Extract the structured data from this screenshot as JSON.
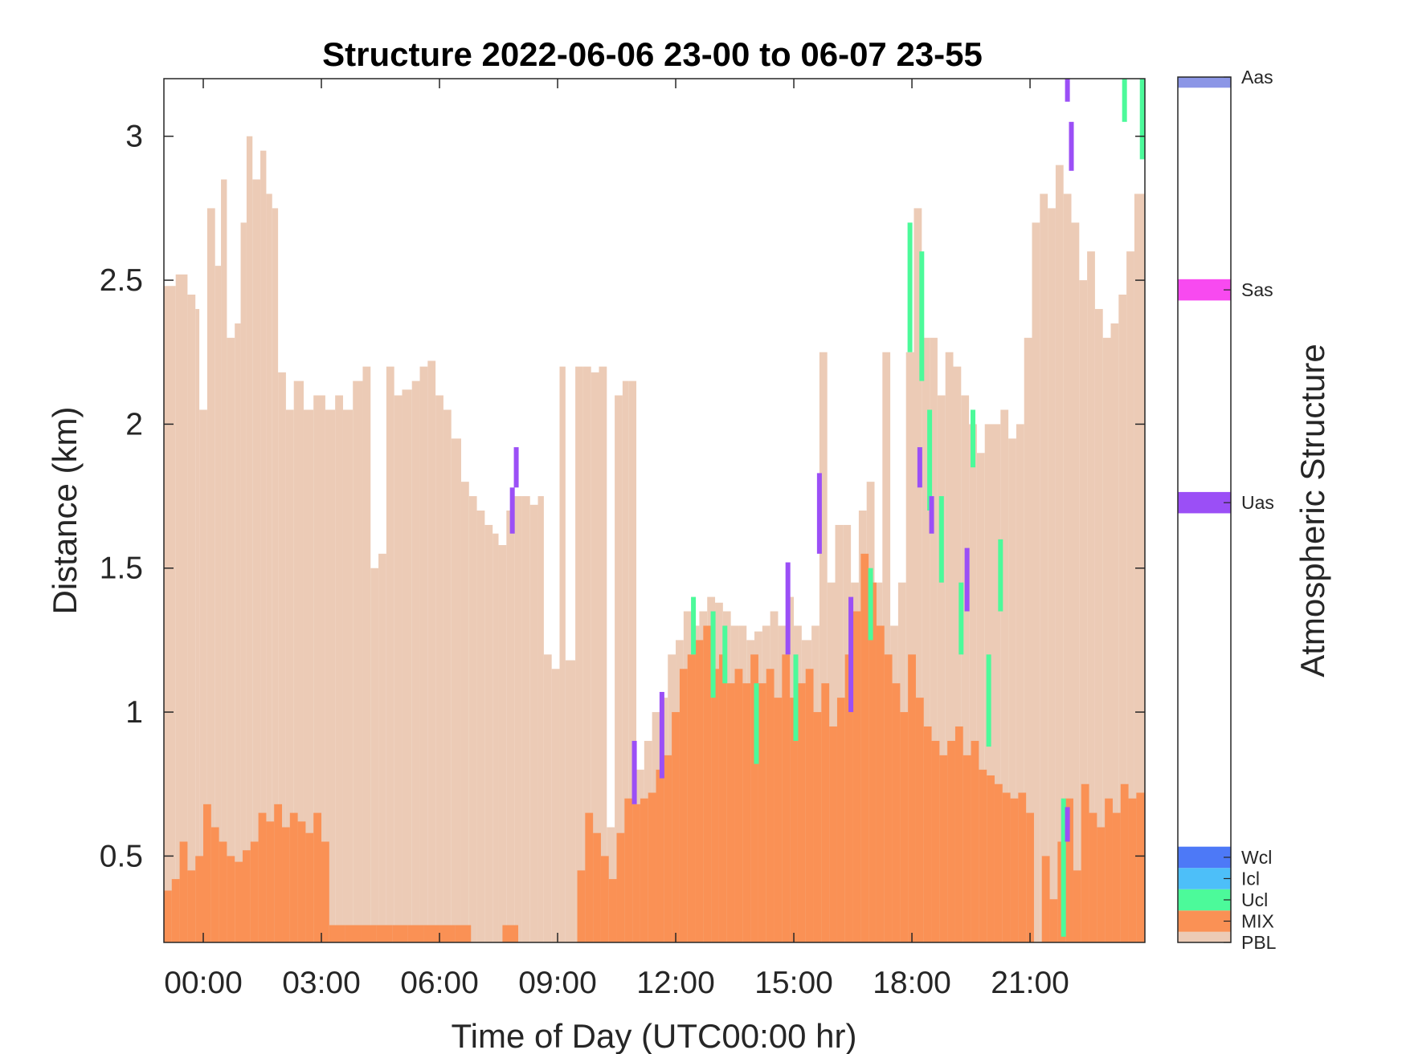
{
  "chart_data": {
    "type": "heatmap",
    "title": "Structure 2022-06-06 23-00 to 06-07 23-55",
    "xlabel": "Time of Day (UTC00:00 hr)",
    "ylabel": "Distance (km)",
    "colorbar_label": "Atmospheric Structure",
    "x_range_hours": [
      -1,
      23.917
    ],
    "ylim": [
      0.2,
      3.2
    ],
    "x_ticks": [
      {
        "value": 0,
        "label": "00:00"
      },
      {
        "value": 3,
        "label": "03:00"
      },
      {
        "value": 6,
        "label": "06:00"
      },
      {
        "value": 9,
        "label": "09:00"
      },
      {
        "value": 12,
        "label": "12:00"
      },
      {
        "value": 15,
        "label": "15:00"
      },
      {
        "value": 18,
        "label": "18:00"
      },
      {
        "value": 21,
        "label": "21:00"
      }
    ],
    "y_ticks": [
      {
        "value": 0.5,
        "label": "0.5"
      },
      {
        "value": 1,
        "label": "1"
      },
      {
        "value": 1.5,
        "label": "1.5"
      },
      {
        "value": 2,
        "label": "2"
      },
      {
        "value": 2.5,
        "label": "2.5"
      },
      {
        "value": 3,
        "label": "3"
      }
    ],
    "classes": [
      {
        "key": "PBL",
        "label": "PBL",
        "color": "#ECCBB6",
        "cb_pos": 0.2
      },
      {
        "key": "MIX",
        "label": "MIX",
        "color": "#FA9155",
        "cb_pos": 0.275
      },
      {
        "key": "Ucl",
        "label": "Ucl",
        "color": "#4CFA9A",
        "cb_pos": 0.35
      },
      {
        "key": "Icl",
        "label": "Icl",
        "color": "#4DBFF9",
        "cb_pos": 0.425
      },
      {
        "key": "Wcl",
        "label": "Wcl",
        "color": "#4D79F7",
        "cb_pos": 0.5
      },
      {
        "key": "Uas",
        "label": "Uas",
        "color": "#9B4FF6",
        "cb_pos": 1.75
      },
      {
        "key": "Sas",
        "label": "Sas",
        "color": "#F84AF0",
        "cb_pos": 2.5
      },
      {
        "key": "Aas",
        "label": "Aas",
        "color": "#8C96E6",
        "cb_pos": 3.25
      }
    ],
    "pbl_top_km": [
      [
        -1.0,
        2.48
      ],
      [
        -0.7,
        2.52
      ],
      [
        -0.4,
        2.45
      ],
      [
        -0.2,
        2.4
      ],
      [
        -0.1,
        2.05
      ],
      [
        0.1,
        2.75
      ],
      [
        0.3,
        2.55
      ],
      [
        0.45,
        2.85
      ],
      [
        0.6,
        2.3
      ],
      [
        0.8,
        2.35
      ],
      [
        0.95,
        2.7
      ],
      [
        1.1,
        3.0
      ],
      [
        1.25,
        2.85
      ],
      [
        1.45,
        2.95
      ],
      [
        1.6,
        2.8
      ],
      [
        1.75,
        2.75
      ],
      [
        1.9,
        2.18
      ],
      [
        2.1,
        2.05
      ],
      [
        2.3,
        2.15
      ],
      [
        2.55,
        2.05
      ],
      [
        2.8,
        2.1
      ],
      [
        3.1,
        2.05
      ],
      [
        3.35,
        2.1
      ],
      [
        3.55,
        2.05
      ],
      [
        3.8,
        2.15
      ],
      [
        4.05,
        2.2
      ],
      [
        4.25,
        1.5
      ],
      [
        4.45,
        1.55
      ],
      [
        4.65,
        2.2
      ],
      [
        4.85,
        2.1
      ],
      [
        5.05,
        2.12
      ],
      [
        5.3,
        2.15
      ],
      [
        5.5,
        2.2
      ],
      [
        5.7,
        2.22
      ],
      [
        5.9,
        2.1
      ],
      [
        6.1,
        2.05
      ],
      [
        6.3,
        1.95
      ],
      [
        6.55,
        1.8
      ],
      [
        6.75,
        1.75
      ],
      [
        6.95,
        1.7
      ],
      [
        7.15,
        1.65
      ],
      [
        7.35,
        1.62
      ],
      [
        7.5,
        1.58
      ],
      [
        7.7,
        1.7
      ],
      [
        7.9,
        1.75
      ],
      [
        8.1,
        1.75
      ],
      [
        8.3,
        1.72
      ],
      [
        8.5,
        1.75
      ],
      [
        8.65,
        1.2
      ],
      [
        8.85,
        1.15
      ],
      [
        9.05,
        2.2
      ],
      [
        9.2,
        1.18
      ],
      [
        9.45,
        2.2
      ],
      [
        9.65,
        2.2
      ],
      [
        9.85,
        2.18
      ],
      [
        10.05,
        2.2
      ],
      [
        10.25,
        0.6
      ],
      [
        10.45,
        2.1
      ],
      [
        10.65,
        2.15
      ],
      [
        10.8,
        2.15
      ],
      [
        11.0,
        0.8
      ],
      [
        11.2,
        0.9
      ],
      [
        11.4,
        1.0
      ],
      [
        11.6,
        1.05
      ],
      [
        11.8,
        1.2
      ],
      [
        12.0,
        1.25
      ],
      [
        12.2,
        1.35
      ],
      [
        12.4,
        1.3
      ],
      [
        12.6,
        1.35
      ],
      [
        12.8,
        1.4
      ],
      [
        13.0,
        1.38
      ],
      [
        13.2,
        1.35
      ],
      [
        13.4,
        1.3
      ],
      [
        13.6,
        1.3
      ],
      [
        13.8,
        1.25
      ],
      [
        14.0,
        1.28
      ],
      [
        14.2,
        1.3
      ],
      [
        14.4,
        1.35
      ],
      [
        14.6,
        1.3
      ],
      [
        14.8,
        1.4
      ],
      [
        15.0,
        1.3
      ],
      [
        15.2,
        1.25
      ],
      [
        15.45,
        1.3
      ],
      [
        15.65,
        2.25
      ],
      [
        15.85,
        1.45
      ],
      [
        16.05,
        1.65
      ],
      [
        16.25,
        1.65
      ],
      [
        16.45,
        1.45
      ],
      [
        16.65,
        1.7
      ],
      [
        16.85,
        1.8
      ],
      [
        17.05,
        1.45
      ],
      [
        17.25,
        2.25
      ],
      [
        17.45,
        1.3
      ],
      [
        17.65,
        1.45
      ],
      [
        17.85,
        2.25
      ],
      [
        18.05,
        2.75
      ],
      [
        18.25,
        2.3
      ],
      [
        18.45,
        2.3
      ],
      [
        18.65,
        2.1
      ],
      [
        18.85,
        2.25
      ],
      [
        19.05,
        2.2
      ],
      [
        19.25,
        2.1
      ],
      [
        19.45,
        2.0
      ],
      [
        19.65,
        1.9
      ],
      [
        19.85,
        2.0
      ],
      [
        20.05,
        2.0
      ],
      [
        20.25,
        2.05
      ],
      [
        20.45,
        1.95
      ],
      [
        20.65,
        2.0
      ],
      [
        20.85,
        2.3
      ],
      [
        21.05,
        2.7
      ],
      [
        21.25,
        2.8
      ],
      [
        21.45,
        2.75
      ],
      [
        21.65,
        2.9
      ],
      [
        21.85,
        2.8
      ],
      [
        22.05,
        2.7
      ],
      [
        22.25,
        2.5
      ],
      [
        22.45,
        2.6
      ],
      [
        22.65,
        2.4
      ],
      [
        22.85,
        2.3
      ],
      [
        23.05,
        2.35
      ],
      [
        23.25,
        2.45
      ],
      [
        23.45,
        2.6
      ],
      [
        23.65,
        2.8
      ],
      [
        23.917,
        2.9
      ]
    ],
    "mix_top_km": [
      [
        -1.0,
        0.38
      ],
      [
        -0.8,
        0.42
      ],
      [
        -0.6,
        0.55
      ],
      [
        -0.4,
        0.45
      ],
      [
        -0.2,
        0.5
      ],
      [
        0.0,
        0.68
      ],
      [
        0.2,
        0.6
      ],
      [
        0.4,
        0.55
      ],
      [
        0.6,
        0.5
      ],
      [
        0.8,
        0.48
      ],
      [
        1.0,
        0.52
      ],
      [
        1.2,
        0.55
      ],
      [
        1.4,
        0.65
      ],
      [
        1.6,
        0.62
      ],
      [
        1.8,
        0.68
      ],
      [
        2.0,
        0.6
      ],
      [
        2.2,
        0.65
      ],
      [
        2.4,
        0.62
      ],
      [
        2.6,
        0.58
      ],
      [
        2.8,
        0.65
      ],
      [
        3.0,
        0.55
      ],
      [
        3.2,
        0.26
      ],
      [
        3.6,
        0.26
      ],
      [
        4.0,
        0.26
      ],
      [
        4.4,
        0.26
      ],
      [
        4.8,
        0.26
      ],
      [
        5.2,
        0.26
      ],
      [
        5.6,
        0.26
      ],
      [
        6.0,
        0.26
      ],
      [
        6.4,
        0.26
      ],
      [
        6.8,
        0.2
      ],
      [
        7.2,
        0.2
      ],
      [
        7.6,
        0.26
      ],
      [
        8.0,
        0.2
      ],
      [
        8.4,
        0.2
      ],
      [
        8.8,
        0.2
      ],
      [
        9.2,
        0.2
      ],
      [
        9.5,
        0.45
      ],
      [
        9.7,
        0.65
      ],
      [
        9.9,
        0.58
      ],
      [
        10.1,
        0.5
      ],
      [
        10.3,
        0.42
      ],
      [
        10.5,
        0.58
      ],
      [
        10.7,
        0.7
      ],
      [
        10.9,
        0.68
      ],
      [
        11.1,
        0.7
      ],
      [
        11.3,
        0.72
      ],
      [
        11.5,
        0.8
      ],
      [
        11.7,
        0.85
      ],
      [
        11.9,
        1.0
      ],
      [
        12.1,
        1.15
      ],
      [
        12.3,
        1.2
      ],
      [
        12.5,
        1.25
      ],
      [
        12.7,
        1.3
      ],
      [
        12.9,
        1.15
      ],
      [
        13.1,
        1.2
      ],
      [
        13.3,
        1.1
      ],
      [
        13.5,
        1.15
      ],
      [
        13.7,
        1.1
      ],
      [
        13.9,
        1.2
      ],
      [
        14.1,
        1.1
      ],
      [
        14.3,
        1.15
      ],
      [
        14.5,
        1.05
      ],
      [
        14.7,
        1.2
      ],
      [
        14.9,
        1.05
      ],
      [
        15.1,
        1.1
      ],
      [
        15.3,
        1.15
      ],
      [
        15.5,
        1.0
      ],
      [
        15.7,
        1.1
      ],
      [
        15.9,
        0.95
      ],
      [
        16.1,
        1.05
      ],
      [
        16.3,
        1.2
      ],
      [
        16.5,
        1.35
      ],
      [
        16.7,
        1.55
      ],
      [
        16.9,
        1.45
      ],
      [
        17.1,
        1.3
      ],
      [
        17.3,
        1.2
      ],
      [
        17.5,
        1.1
      ],
      [
        17.7,
        1.0
      ],
      [
        17.9,
        1.2
      ],
      [
        18.1,
        1.05
      ],
      [
        18.3,
        0.95
      ],
      [
        18.5,
        0.9
      ],
      [
        18.7,
        0.85
      ],
      [
        18.9,
        0.9
      ],
      [
        19.1,
        0.95
      ],
      [
        19.3,
        0.85
      ],
      [
        19.5,
        0.9
      ],
      [
        19.7,
        0.8
      ],
      [
        19.9,
        0.78
      ],
      [
        20.1,
        0.75
      ],
      [
        20.3,
        0.72
      ],
      [
        20.5,
        0.7
      ],
      [
        20.7,
        0.72
      ],
      [
        20.9,
        0.65
      ],
      [
        21.1,
        0.2
      ],
      [
        21.3,
        0.5
      ],
      [
        21.5,
        0.35
      ],
      [
        21.7,
        0.55
      ],
      [
        21.9,
        0.7
      ],
      [
        22.1,
        0.45
      ],
      [
        22.3,
        0.75
      ],
      [
        22.5,
        0.65
      ],
      [
        22.7,
        0.6
      ],
      [
        22.9,
        0.7
      ],
      [
        23.1,
        0.65
      ],
      [
        23.3,
        0.75
      ],
      [
        23.5,
        0.7
      ],
      [
        23.7,
        0.72
      ],
      [
        23.917,
        0.75
      ]
    ],
    "cloud_segments": [
      {
        "cls": "Ucl",
        "x": 12.45,
        "y0": 1.2,
        "y1": 1.4
      },
      {
        "cls": "Ucl",
        "x": 12.95,
        "y0": 1.05,
        "y1": 1.35
      },
      {
        "cls": "Ucl",
        "x": 13.25,
        "y0": 1.1,
        "y1": 1.3
      },
      {
        "cls": "Ucl",
        "x": 14.05,
        "y0": 0.82,
        "y1": 1.1
      },
      {
        "cls": "Ucl",
        "x": 15.05,
        "y0": 0.9,
        "y1": 1.2
      },
      {
        "cls": "Ucl",
        "x": 16.95,
        "y0": 1.25,
        "y1": 1.5
      },
      {
        "cls": "Ucl",
        "x": 17.95,
        "y0": 2.25,
        "y1": 2.7
      },
      {
        "cls": "Ucl",
        "x": 18.25,
        "y0": 2.15,
        "y1": 2.6
      },
      {
        "cls": "Ucl",
        "x": 18.45,
        "y0": 1.7,
        "y1": 2.05
      },
      {
        "cls": "Ucl",
        "x": 18.75,
        "y0": 1.45,
        "y1": 1.75
      },
      {
        "cls": "Ucl",
        "x": 19.25,
        "y0": 1.2,
        "y1": 1.45
      },
      {
        "cls": "Ucl",
        "x": 19.55,
        "y0": 1.85,
        "y1": 2.05
      },
      {
        "cls": "Ucl",
        "x": 19.95,
        "y0": 0.88,
        "y1": 1.2
      },
      {
        "cls": "Ucl",
        "x": 20.25,
        "y0": 1.35,
        "y1": 1.6
      },
      {
        "cls": "Ucl",
        "x": 21.85,
        "y0": 0.22,
        "y1": 0.7
      },
      {
        "cls": "Ucl",
        "x": 23.4,
        "y0": 3.05,
        "y1": 3.2
      },
      {
        "cls": "Ucl",
        "x": 23.85,
        "y0": 2.92,
        "y1": 3.2
      },
      {
        "cls": "Uas",
        "x": 7.85,
        "y0": 1.62,
        "y1": 1.78
      },
      {
        "cls": "Uas",
        "x": 7.95,
        "y0": 1.78,
        "y1": 1.92
      },
      {
        "cls": "Uas",
        "x": 10.95,
        "y0": 0.68,
        "y1": 0.9
      },
      {
        "cls": "Uas",
        "x": 11.65,
        "y0": 0.77,
        "y1": 1.07
      },
      {
        "cls": "Uas",
        "x": 14.85,
        "y0": 1.2,
        "y1": 1.52
      },
      {
        "cls": "Uas",
        "x": 15.65,
        "y0": 1.55,
        "y1": 1.83
      },
      {
        "cls": "Uas",
        "x": 16.45,
        "y0": 1.0,
        "y1": 1.4
      },
      {
        "cls": "Uas",
        "x": 18.2,
        "y0": 1.78,
        "y1": 1.92
      },
      {
        "cls": "Uas",
        "x": 18.5,
        "y0": 1.62,
        "y1": 1.75
      },
      {
        "cls": "Uas",
        "x": 19.4,
        "y0": 1.35,
        "y1": 1.57
      },
      {
        "cls": "Uas",
        "x": 21.95,
        "y0": 0.55,
        "y1": 0.67
      },
      {
        "cls": "Uas",
        "x": 22.05,
        "y0": 2.88,
        "y1": 3.05
      },
      {
        "cls": "Uas",
        "x": 21.95,
        "y0": 3.12,
        "y1": 3.2
      }
    ]
  }
}
